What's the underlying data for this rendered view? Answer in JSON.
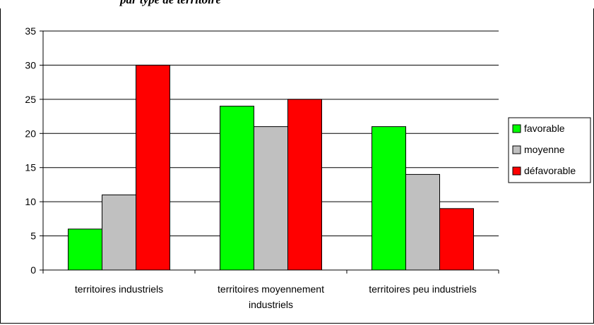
{
  "chart_data": {
    "type": "bar",
    "title": "par type de territoire",
    "categories": [
      [
        "territoires industriels"
      ],
      [
        "territoires moyennement",
        "industriels"
      ],
      [
        "territoires peu industriels"
      ]
    ],
    "series": [
      {
        "name": "favorable",
        "color": "#00ff00",
        "values": [
          6,
          24,
          21
        ]
      },
      {
        "name": "moyenne",
        "color": "#c0c0c0",
        "values": [
          11,
          21,
          14
        ]
      },
      {
        "name": "défavorable",
        "color": "#ff0000",
        "values": [
          30,
          25,
          9
        ]
      }
    ],
    "ylim": [
      0,
      35
    ],
    "yticks": [
      0,
      5,
      10,
      15,
      20,
      25,
      30,
      35
    ],
    "grid": true,
    "legend_position": "right"
  }
}
